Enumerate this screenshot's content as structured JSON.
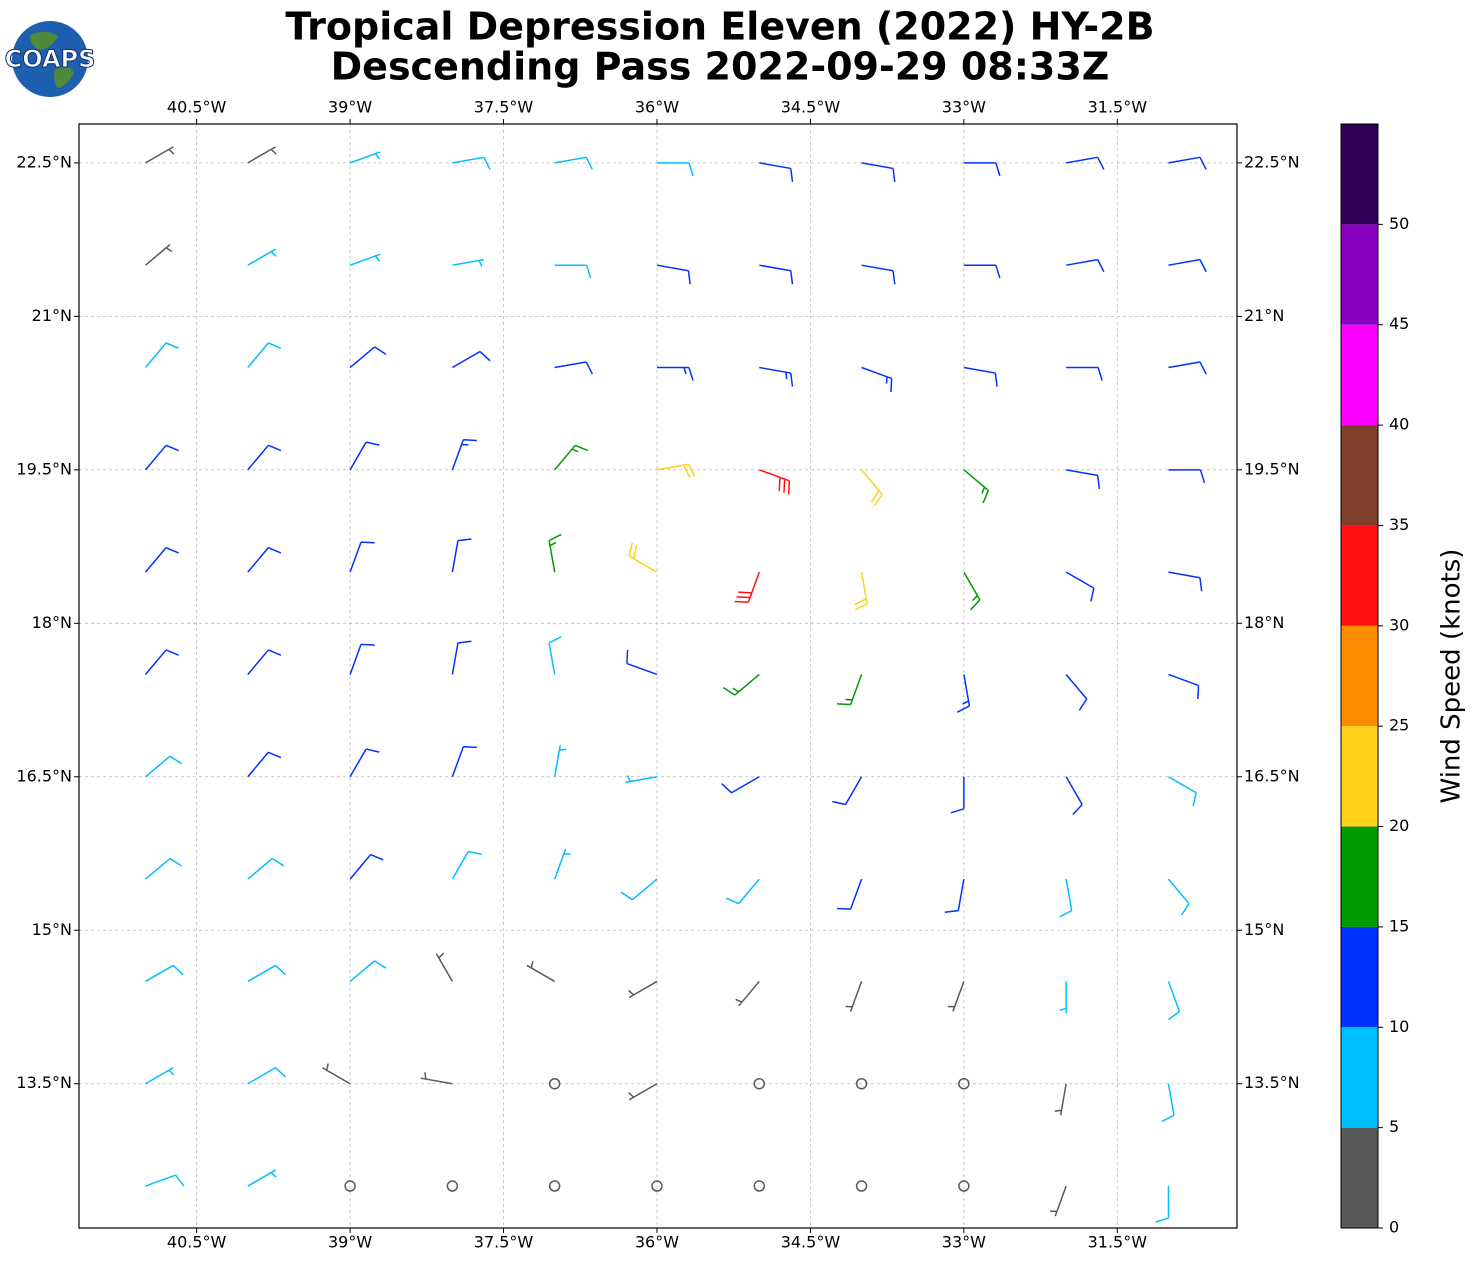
{
  "logo_text": "COAPS",
  "chart_data": {
    "type": "barbs",
    "title": [
      "Tropical Depression Eleven (2022) HY-2B",
      "Descending Pass 2022-09-29 08:33Z"
    ],
    "xlim": [
      -41.65,
      -30.33
    ],
    "ylim": [
      12.09,
      22.88
    ],
    "xticks": [
      {
        "value": -40.5,
        "label": "40.5°W"
      },
      {
        "value": -39,
        "label": "39°W"
      },
      {
        "value": -37.5,
        "label": "37.5°W"
      },
      {
        "value": -36,
        "label": "36°W"
      },
      {
        "value": -34.5,
        "label": "34.5°W"
      },
      {
        "value": -33,
        "label": "33°W"
      },
      {
        "value": -31.5,
        "label": "31.5°W"
      }
    ],
    "yticks": [
      {
        "value": 13.5,
        "label": "13.5°N"
      },
      {
        "value": 15,
        "label": "15°N"
      },
      {
        "value": 16.5,
        "label": "16.5°N"
      },
      {
        "value": 18,
        "label": "18°N"
      },
      {
        "value": 19.5,
        "label": "19.5°N"
      },
      {
        "value": 21,
        "label": "21°N"
      },
      {
        "value": 22.5,
        "label": "22.5°N"
      }
    ],
    "grid": true,
    "colorbar": {
      "label": "Wind Speed (knots)",
      "levels": [
        0,
        5,
        10,
        15,
        20,
        25,
        30,
        35,
        40,
        45,
        50,
        55
      ],
      "colors": [
        "#595959",
        "#00bfff",
        "#0033ff",
        "#009900",
        "#ffd11a",
        "#ff8c00",
        "#ff1111",
        "#7f3f2a",
        "#ff00ff",
        "#8a00c0",
        "#2e0057"
      ],
      "ticks": [
        0,
        5,
        10,
        15,
        20,
        25,
        30,
        35,
        40,
        45,
        50
      ]
    },
    "barbs": {
      "lon": [
        -41,
        -40,
        -39,
        -38,
        -37,
        -36,
        -35,
        -34,
        -33,
        -32,
        -31
      ],
      "lat": [
        22.5,
        21.5,
        20.5,
        19.5,
        18.5,
        17.5,
        16.5,
        15.5,
        14.5,
        13.5,
        12.5
      ],
      "speed": [
        [
          3,
          4,
          7,
          8,
          8,
          9,
          11,
          12,
          11,
          11,
          11
        ],
        [
          4,
          6,
          7,
          7,
          9,
          11,
          12,
          12,
          12,
          11,
          11
        ],
        [
          8,
          9,
          11,
          11,
          12,
          13,
          14,
          13,
          12,
          12,
          11
        ],
        [
          12,
          12,
          12,
          13,
          17,
          22,
          30,
          22,
          15,
          12,
          11
        ],
        [
          11,
          12,
          12,
          12,
          16,
          20,
          32,
          22,
          17,
          12,
          11
        ],
        [
          12,
          11,
          12,
          11,
          8,
          11,
          17,
          17,
          14,
          12,
          10
        ],
        [
          9,
          11,
          11,
          10,
          7,
          7,
          12,
          12,
          12,
          11,
          9
        ],
        [
          8,
          9,
          10,
          8,
          7,
          8,
          9,
          10,
          10,
          9,
          8
        ],
        [
          8,
          8,
          9,
          3,
          3,
          4,
          4,
          3,
          3,
          6,
          8
        ],
        [
          7,
          8,
          3,
          3,
          2,
          3,
          2,
          2,
          2,
          4,
          9
        ],
        [
          8,
          7,
          2,
          2,
          2,
          2,
          2,
          1,
          2,
          3,
          8
        ]
      ],
      "direction": [
        [
          60,
          60,
          70,
          80,
          80,
          90,
          100,
          100,
          90,
          80,
          80
        ],
        [
          50,
          60,
          70,
          80,
          90,
          100,
          100,
          100,
          90,
          80,
          80
        ],
        [
          40,
          40,
          50,
          60,
          80,
          90,
          100,
          110,
          100,
          90,
          80
        ],
        [
          40,
          40,
          30,
          20,
          40,
          80,
          110,
          140,
          130,
          100,
          90
        ],
        [
          40,
          40,
          20,
          10,
          350,
          300,
          200,
          170,
          150,
          120,
          100
        ],
        [
          40,
          40,
          20,
          10,
          350,
          290,
          230,
          200,
          170,
          140,
          110
        ],
        [
          50,
          40,
          30,
          20,
          10,
          260,
          240,
          210,
          180,
          150,
          120
        ],
        [
          50,
          50,
          40,
          30,
          20,
          230,
          220,
          200,
          190,
          170,
          140
        ],
        [
          60,
          60,
          50,
          330,
          300,
          240,
          220,
          200,
          200,
          180,
          160
        ],
        [
          60,
          60,
          300,
          280,
          260,
          240,
          220,
          210,
          200,
          190,
          170
        ],
        [
          70,
          60,
          280,
          260,
          250,
          240,
          230,
          220,
          210,
          200,
          180
        ]
      ]
    }
  }
}
